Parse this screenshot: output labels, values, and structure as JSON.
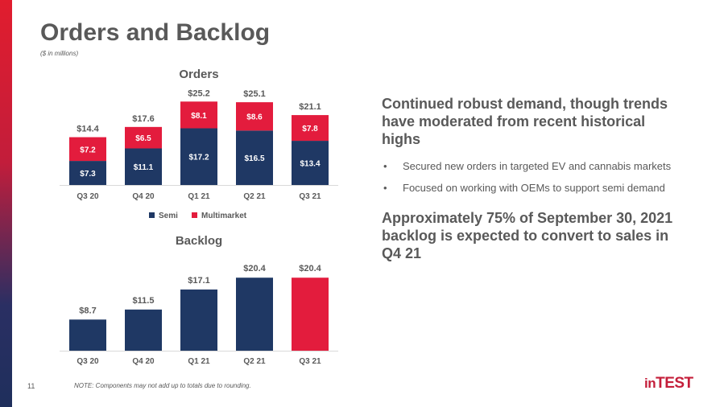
{
  "slide": {
    "title": "Orders and Backlog",
    "subtitle": "($ in millions)",
    "page_number": "11",
    "note": "NOTE: Components may not add up to totals due to rounding.",
    "logo_prefix": "in",
    "logo_suffix": "TEST"
  },
  "colors": {
    "semi": "#1f3864",
    "multimarket": "#e31c3d",
    "grid": "#d9d9d9",
    "text": "#595959"
  },
  "right_panel": {
    "headline": "Continued robust demand, though trends have moderated from recent historical highs",
    "bullets": [
      "Secured new orders in targeted EV and cannabis markets",
      "Focused on working with OEMs to support semi demand"
    ],
    "bullet_glyph": "•",
    "headline2": "Approximately 75% of September 30, 2021 backlog is expected to convert to sales in Q4 21"
  },
  "chart_data": [
    {
      "type": "bar",
      "stacked": true,
      "title": "Orders",
      "categories": [
        "Q3 20",
        "Q4 20",
        "Q1 21",
        "Q2 21",
        "Q3 21"
      ],
      "series": [
        {
          "name": "Semi",
          "values": [
            7.3,
            11.1,
            17.2,
            16.5,
            13.4
          ],
          "labels": [
            "$7.3",
            "$11.1",
            "$17.2",
            "$16.5",
            "$13.4"
          ]
        },
        {
          "name": "Multimarket",
          "values": [
            7.2,
            6.5,
            8.1,
            8.6,
            7.8
          ],
          "labels": [
            "$7.2",
            "$6.5",
            "$8.1",
            "$8.6",
            "$7.8"
          ]
        }
      ],
      "totals": [
        14.4,
        17.6,
        25.2,
        25.1,
        21.1
      ],
      "total_labels": [
        "$14.4",
        "$17.6",
        "$25.2",
        "$25.1",
        "$21.1"
      ],
      "legend": "bottom",
      "grid": false
    },
    {
      "type": "bar",
      "title": "Backlog",
      "categories": [
        "Q3 20",
        "Q4 20",
        "Q1 21",
        "Q2 21",
        "Q3 21"
      ],
      "values": [
        8.7,
        11.5,
        17.1,
        20.4,
        20.4
      ],
      "labels": [
        "$8.7",
        "$11.5",
        "$17.1",
        "$20.4",
        "$20.4"
      ],
      "highlight_last": true,
      "grid": false
    }
  ]
}
